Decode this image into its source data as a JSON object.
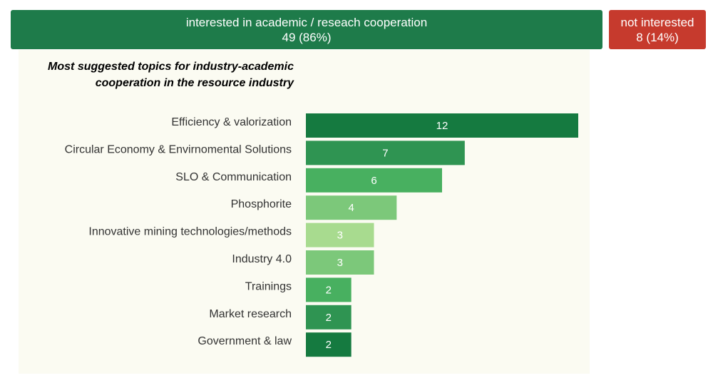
{
  "summary": {
    "interested": {
      "label": "interested in academic / reseach cooperation",
      "value": "49 (86%)",
      "color": "#1e7b4a"
    },
    "not_interested": {
      "label": "not interested",
      "value": "8 (14%)",
      "color": "#c63a2d"
    }
  },
  "chart_data": {
    "type": "bar",
    "orientation": "horizontal",
    "title": "Most suggested topics for industry-academic cooperation in the resource industry",
    "title_lines": [
      "Most suggested topics for industry-academic",
      "cooperation in the resource industry"
    ],
    "categories": [
      "Efficiency & valorization",
      "Circular Economy & Envirnomental Solutions",
      "SLO & Communication",
      "Phosphorite",
      "Innovative mining technologies/methods",
      "Industry 4.0",
      "Trainings",
      "Market research",
      "Government & law"
    ],
    "values": [
      12,
      7,
      6,
      4,
      3,
      3,
      2,
      2,
      2
    ],
    "colors": [
      "#157a40",
      "#2f9452",
      "#48b060",
      "#7cc87a",
      "#a8db8f",
      "#7cc87a",
      "#48b060",
      "#2f9452",
      "#157a40"
    ],
    "xlim": [
      0,
      12
    ],
    "xlabel": "",
    "ylabel": ""
  }
}
